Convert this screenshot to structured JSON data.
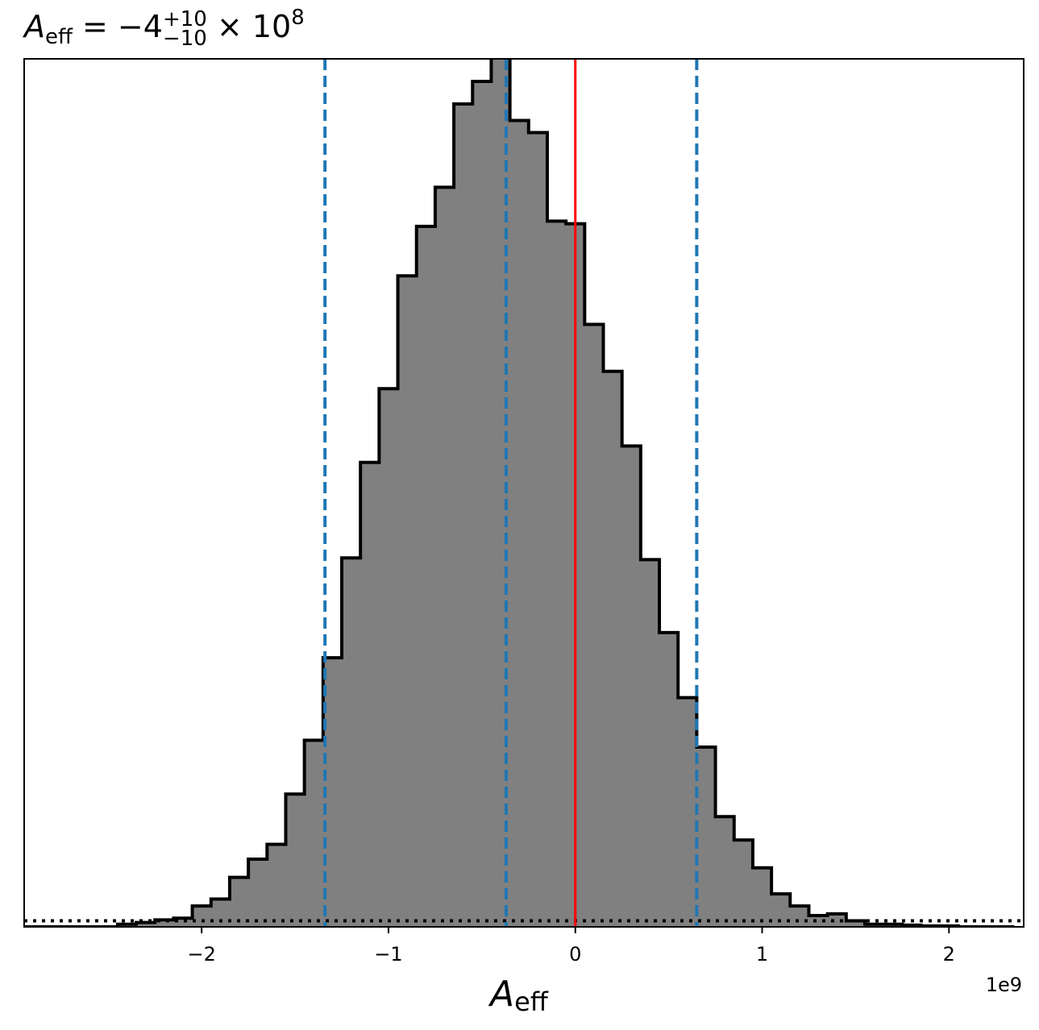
{
  "chart_data": {
    "type": "histogram",
    "title": {
      "symbol": "A",
      "symbol_sub": "eff",
      "equals": " = ",
      "median": "−4",
      "upper": "+10",
      "lower": "−10",
      "times": " × 10",
      "exponent": "8"
    },
    "xlabel": {
      "symbol": "A",
      "sub": "eff"
    },
    "x_offset_label": "1e9",
    "xlim": [
      -2.95,
      2.4
    ],
    "ylim": [
      0,
      1.0
    ],
    "x_ticks": [
      {
        "value": -2,
        "label": "−2"
      },
      {
        "value": -1,
        "label": "−1"
      },
      {
        "value": 0,
        "label": "0"
      },
      {
        "value": 1,
        "label": "1"
      },
      {
        "value": 2,
        "label": "2"
      }
    ],
    "bin_edges": [
      -2.95,
      -2.85,
      -2.75,
      -2.65,
      -2.55,
      -2.45,
      -2.35,
      -2.25,
      -2.15,
      -2.05,
      -1.95,
      -1.85,
      -1.75,
      -1.65,
      -1.55,
      -1.45,
      -1.35,
      -1.25,
      -1.15,
      -1.05,
      -0.95,
      -0.85,
      -0.75,
      -0.65,
      -0.55,
      -0.45,
      -0.35,
      -0.25,
      -0.15,
      -0.05,
      0.05,
      0.15,
      0.25,
      0.35,
      0.45,
      0.55,
      0.65,
      0.75,
      0.85,
      0.95,
      1.05,
      1.15,
      1.25,
      1.35,
      1.45,
      1.55,
      1.65,
      1.75,
      1.85,
      1.95,
      2.05,
      2.15,
      2.25,
      2.35
    ],
    "counts": [
      0.0,
      0.0,
      0.0,
      0.0,
      0.0,
      0.003,
      0.005,
      0.008,
      0.01,
      0.024,
      0.032,
      0.057,
      0.078,
      0.095,
      0.153,
      0.215,
      0.31,
      0.425,
      0.535,
      0.62,
      0.75,
      0.807,
      0.852,
      0.948,
      0.974,
      1.01,
      0.929,
      0.915,
      0.813,
      0.81,
      0.694,
      0.64,
      0.554,
      0.423,
      0.339,
      0.264,
      0.207,
      0.127,
      0.1,
      0.068,
      0.038,
      0.024,
      0.013,
      0.015,
      0.007,
      0.003,
      0.003,
      0.002,
      0.001,
      0.001,
      0.0,
      0.0,
      0.0
    ],
    "hist_fill": "#808080",
    "hist_edge": "#000000",
    "quantile_lines": [
      -1.34,
      -0.37,
      0.65
    ],
    "quantile_color": "#1f77b4",
    "truth_line": 0,
    "truth_color": "#ff0000",
    "baseline_level": 0.007,
    "grid": false
  }
}
